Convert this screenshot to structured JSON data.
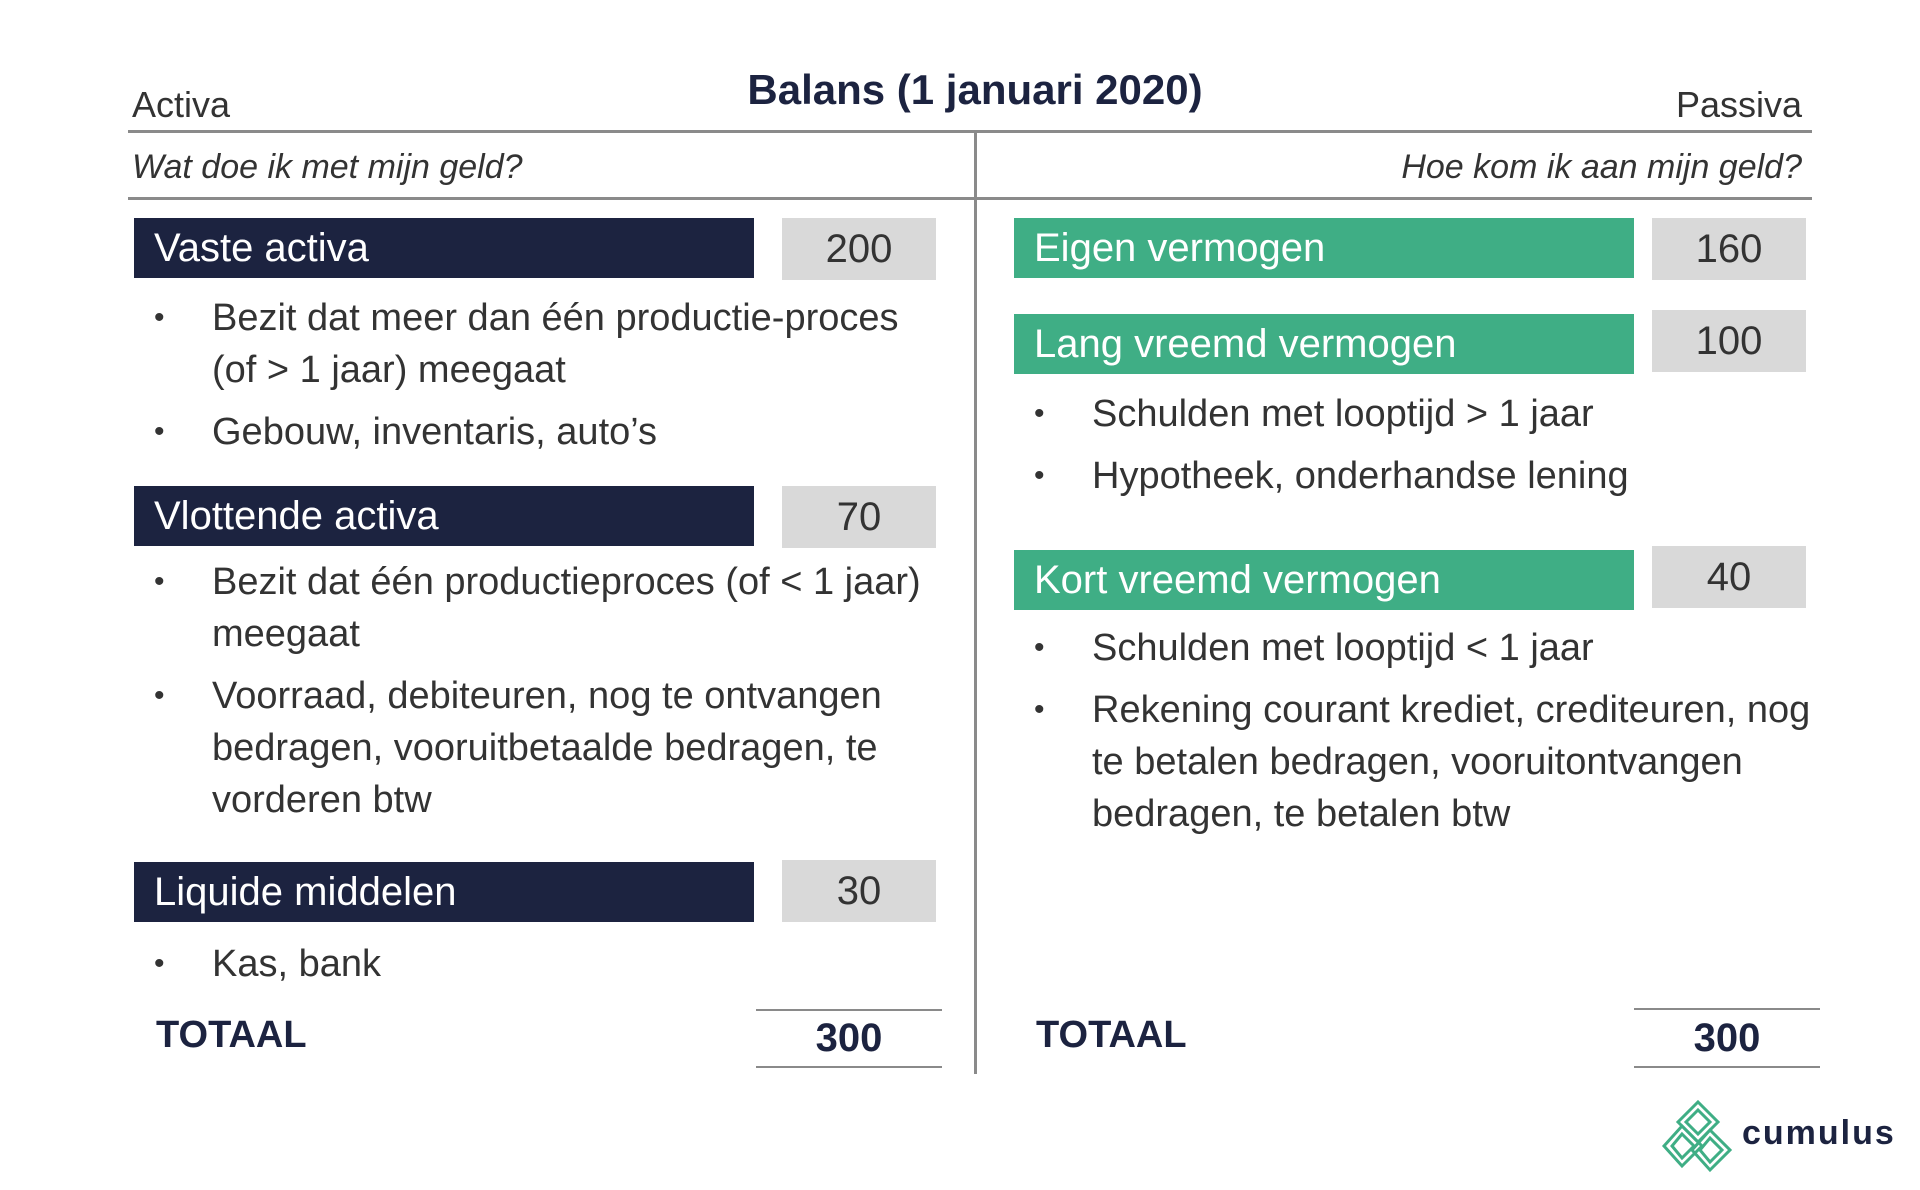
{
  "title": "Balans (1 januari 2020)",
  "header": {
    "left_label": "Activa",
    "right_label": "Passiva",
    "left_question": "Wat doe ik met mijn geld?",
    "right_question": "Hoe kom ik aan mijn geld?"
  },
  "activa": [
    {
      "label": "Vaste activa",
      "value": "200",
      "bullets": [
        "Bezit dat meer dan één productie-proces (of > 1 jaar) meegaat",
        "Gebouw, inventaris, auto’s"
      ]
    },
    {
      "label": "Vlottende activa",
      "value": "70",
      "bullets": [
        "Bezit dat één productieproces (of < 1 jaar) meegaat",
        "Voorraad, debiteuren, nog te ontvangen bedragen, vooruitbetaalde bedragen, te vorderen btw"
      ]
    },
    {
      "label": "Liquide middelen",
      "value": "30",
      "bullets": [
        "Kas, bank"
      ]
    }
  ],
  "passiva": [
    {
      "label": "Eigen vermogen",
      "value": "160",
      "bullets": []
    },
    {
      "label": "Lang vreemd vermogen",
      "value": "100",
      "bullets": [
        "Schulden met looptijd > 1 jaar",
        "Hypotheek, onderhandse lening"
      ]
    },
    {
      "label": "Kort vreemd vermogen",
      "value": "40",
      "bullets": [
        "Schulden met looptijd < 1 jaar",
        "Rekening courant krediet, crediteuren, nog te betalen bedragen, vooruitontvangen bedragen, te betalen btw"
      ]
    }
  ],
  "totals": {
    "activa_label": "TOTAAL",
    "activa_value": "300",
    "passiva_label": "TOTAAL",
    "passiva_value": "300"
  },
  "logo": {
    "text": "cumulus",
    "icon": "cumulus-logo-icon"
  },
  "colors": {
    "navy": "#1c2340",
    "green": "#3fae85",
    "value_bg": "#d9d9d9",
    "rule": "#8a8a8a"
  }
}
